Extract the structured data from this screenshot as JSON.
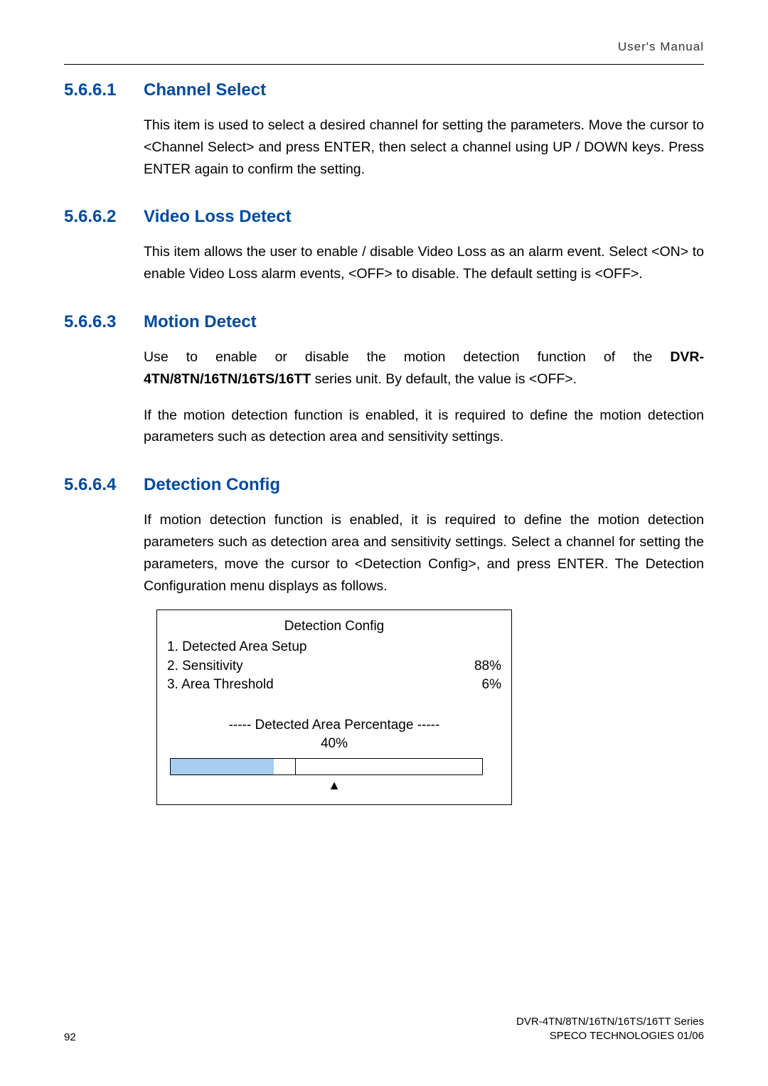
{
  "header": {
    "right": "User's  Manual"
  },
  "sections": [
    {
      "num": "5.6.6.1",
      "title": "Channel Select",
      "paras": [
        "This item is used to select a desired channel for setting the parameters. Move the cursor to <Channel Select> and press ENTER, then select a channel using UP / DOWN keys. Press ENTER again to confirm the setting."
      ]
    },
    {
      "num": "5.6.6.2",
      "title": "Video Loss Detect",
      "paras": [
        "This item allows the user to enable / disable Video Loss as an alarm event. Select <ON> to enable Video Loss alarm events, <OFF> to disable. The default setting is <OFF>."
      ]
    },
    {
      "num": "5.6.6.3",
      "title": "Motion Detect",
      "p1_pre": "Use to enable or disable the motion detection function of the ",
      "p1_bold": "DVR-4TN/8TN/16TN/16TS/16TT",
      "p1_post": " series unit. By default, the value is <OFF>.",
      "p2": "If the motion detection function is enabled, it is required to define the motion detection parameters such as detection area and sensitivity settings."
    },
    {
      "num": "5.6.6.4",
      "title": "Detection Config",
      "paras": [
        "If motion detection function is enabled, it is required to define the motion detection parameters such as detection area and sensitivity settings. Select a channel for setting the parameters, move the cursor to <Detection Config>, and press ENTER. The Detection Configuration menu displays as follows."
      ]
    }
  ],
  "config_box": {
    "title": "Detection Config",
    "rows": [
      {
        "label": "1. Detected Area Setup",
        "value": ""
      },
      {
        "label": "2. Sensitivity",
        "value": "88%"
      },
      {
        "label": "3. Area Threshold",
        "value": "6%"
      }
    ],
    "divider_label": "----- Detected Area Percentage -----",
    "divider_value": "40%",
    "progress_fill_percent": 33,
    "fill_color": "#a7cdf0",
    "arrow": "▲"
  },
  "footer": {
    "page_num": "92",
    "line1": "DVR-4TN/8TN/16TN/16TS/16TT Series",
    "line2": "SPECO TECHNOLOGIES 01/06"
  },
  "colors": {
    "heading": "#004a9c",
    "text": "#000000",
    "background": "#ffffff"
  }
}
